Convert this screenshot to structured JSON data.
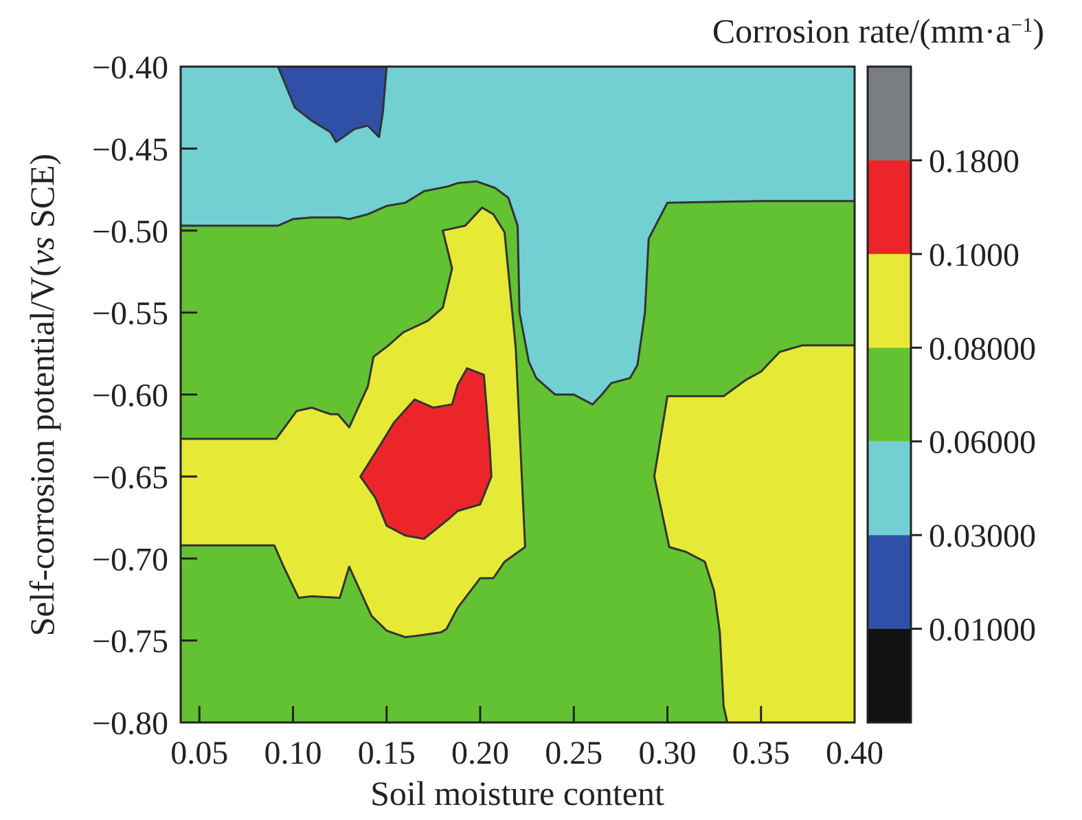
{
  "chart_data": {
    "type": "heatmap",
    "subtype": "filled-contour",
    "xlabel": "Soil moisture content",
    "ylabel_main": "Self-corrosion potential/V(",
    "ylabel_italic": "vs",
    "ylabel_end": " SCE)",
    "colorbar_title_main": "Corrosion rate/(mm·a",
    "colorbar_title_sup": "−1",
    "colorbar_title_end": ")",
    "xlim": [
      0.04,
      0.4
    ],
    "ylim": [
      -0.8,
      -0.4
    ],
    "x_ticks": [
      {
        "value": 0.05,
        "label": "0.05"
      },
      {
        "value": 0.1,
        "label": "0.10"
      },
      {
        "value": 0.15,
        "label": "0.15"
      },
      {
        "value": 0.2,
        "label": "0.20"
      },
      {
        "value": 0.25,
        "label": "0.25"
      },
      {
        "value": 0.3,
        "label": "0.30"
      },
      {
        "value": 0.35,
        "label": "0.35"
      },
      {
        "value": 0.4,
        "label": "0.40"
      }
    ],
    "y_ticks": [
      {
        "value": -0.4,
        "label": "−0.40"
      },
      {
        "value": -0.45,
        "label": "−0.45"
      },
      {
        "value": -0.5,
        "label": "−0.50"
      },
      {
        "value": -0.55,
        "label": "−0.55"
      },
      {
        "value": -0.6,
        "label": "−0.60"
      },
      {
        "value": -0.65,
        "label": "−0.65"
      },
      {
        "value": -0.7,
        "label": "−0.70"
      },
      {
        "value": -0.75,
        "label": "−0.75"
      },
      {
        "value": -0.8,
        "label": "−0.80"
      }
    ],
    "colorbar": {
      "bands": [
        {
          "name": "black",
          "color": "#111111"
        },
        {
          "name": "blue",
          "color": "#3050a8"
        },
        {
          "name": "cyan",
          "color": "#72d0d2"
        },
        {
          "name": "green",
          "color": "#62c232"
        },
        {
          "name": "yellow",
          "color": "#e6ea36"
        },
        {
          "name": "red",
          "color": "#ec252b"
        },
        {
          "name": "gray",
          "color": "#7a7d82"
        }
      ],
      "tick_labels": [
        "0.01000",
        "0.03000",
        "0.06000",
        "0.08000",
        "0.1000",
        "0.1800"
      ]
    },
    "regions": [
      {
        "name": "cyan-background",
        "color": "#72d0d2",
        "points": [
          [
            0.04,
            -0.4
          ],
          [
            0.4,
            -0.4
          ],
          [
            0.4,
            -0.8
          ],
          [
            0.04,
            -0.8
          ]
        ]
      },
      {
        "name": "blue-top",
        "color": "#3050a8",
        "points": [
          [
            0.092,
            -0.4
          ],
          [
            0.15,
            -0.4
          ],
          [
            0.148,
            -0.428
          ],
          [
            0.146,
            -0.443
          ],
          [
            0.14,
            -0.436
          ],
          [
            0.133,
            -0.438
          ],
          [
            0.123,
            -0.446
          ],
          [
            0.12,
            -0.44
          ],
          [
            0.11,
            -0.433
          ],
          [
            0.101,
            -0.425
          ]
        ]
      },
      {
        "name": "green-main",
        "color": "#62c232",
        "points": [
          [
            0.04,
            -0.497
          ],
          [
            0.092,
            -0.497
          ],
          [
            0.1,
            -0.493
          ],
          [
            0.11,
            -0.492
          ],
          [
            0.125,
            -0.492
          ],
          [
            0.13,
            -0.493
          ],
          [
            0.14,
            -0.49
          ],
          [
            0.15,
            -0.485
          ],
          [
            0.16,
            -0.483
          ],
          [
            0.17,
            -0.476
          ],
          [
            0.183,
            -0.473
          ],
          [
            0.188,
            -0.471
          ],
          [
            0.198,
            -0.47
          ],
          [
            0.208,
            -0.474
          ],
          [
            0.215,
            -0.48
          ],
          [
            0.22,
            -0.497
          ],
          [
            0.221,
            -0.55
          ],
          [
            0.226,
            -0.58
          ],
          [
            0.23,
            -0.59
          ],
          [
            0.24,
            -0.6
          ],
          [
            0.25,
            -0.6
          ],
          [
            0.26,
            -0.606
          ],
          [
            0.265,
            -0.6
          ],
          [
            0.27,
            -0.593
          ],
          [
            0.28,
            -0.59
          ],
          [
            0.284,
            -0.582
          ],
          [
            0.288,
            -0.55
          ],
          [
            0.29,
            -0.505
          ],
          [
            0.3,
            -0.483
          ],
          [
            0.35,
            -0.482
          ],
          [
            0.4,
            -0.482
          ],
          [
            0.4,
            -0.8
          ],
          [
            0.04,
            -0.8
          ]
        ]
      },
      {
        "name": "yellow-left",
        "color": "#e6ea36",
        "points": [
          [
            0.04,
            -0.627
          ],
          [
            0.07,
            -0.627
          ],
          [
            0.091,
            -0.627
          ],
          [
            0.102,
            -0.61
          ],
          [
            0.11,
            -0.608
          ],
          [
            0.115,
            -0.61
          ],
          [
            0.12,
            -0.612
          ],
          [
            0.124,
            -0.612
          ],
          [
            0.13,
            -0.62
          ],
          [
            0.14,
            -0.595
          ],
          [
            0.143,
            -0.577
          ],
          [
            0.151,
            -0.57
          ],
          [
            0.159,
            -0.562
          ],
          [
            0.172,
            -0.555
          ],
          [
            0.18,
            -0.547
          ],
          [
            0.185,
            -0.523
          ],
          [
            0.18,
            -0.5
          ],
          [
            0.192,
            -0.497
          ],
          [
            0.201,
            -0.486
          ],
          [
            0.207,
            -0.49
          ],
          [
            0.213,
            -0.501
          ],
          [
            0.219,
            -0.572
          ],
          [
            0.224,
            -0.693
          ],
          [
            0.213,
            -0.702
          ],
          [
            0.207,
            -0.712
          ],
          [
            0.2,
            -0.712
          ],
          [
            0.188,
            -0.73
          ],
          [
            0.182,
            -0.743
          ],
          [
            0.179,
            -0.745
          ],
          [
            0.167,
            -0.747
          ],
          [
            0.16,
            -0.748
          ],
          [
            0.15,
            -0.744
          ],
          [
            0.142,
            -0.735
          ],
          [
            0.13,
            -0.705
          ],
          [
            0.125,
            -0.724
          ],
          [
            0.11,
            -0.723
          ],
          [
            0.103,
            -0.724
          ],
          [
            0.095,
            -0.705
          ],
          [
            0.09,
            -0.692
          ],
          [
            0.07,
            -0.692
          ],
          [
            0.04,
            -0.692
          ]
        ]
      },
      {
        "name": "red-center",
        "color": "#ec252b",
        "points": [
          [
            0.147,
            -0.63
          ],
          [
            0.154,
            -0.617
          ],
          [
            0.165,
            -0.603
          ],
          [
            0.175,
            -0.608
          ],
          [
            0.185,
            -0.606
          ],
          [
            0.188,
            -0.594
          ],
          [
            0.193,
            -0.584
          ],
          [
            0.202,
            -0.588
          ],
          [
            0.205,
            -0.63
          ],
          [
            0.206,
            -0.65
          ],
          [
            0.2,
            -0.667
          ],
          [
            0.188,
            -0.671
          ],
          [
            0.183,
            -0.676
          ],
          [
            0.17,
            -0.688
          ],
          [
            0.16,
            -0.686
          ],
          [
            0.15,
            -0.68
          ],
          [
            0.144,
            -0.663
          ],
          [
            0.136,
            -0.65
          ]
        ]
      },
      {
        "name": "yellow-right",
        "color": "#e6ea36",
        "points": [
          [
            0.4,
            -0.57
          ],
          [
            0.372,
            -0.57
          ],
          [
            0.36,
            -0.574
          ],
          [
            0.35,
            -0.586
          ],
          [
            0.342,
            -0.591
          ],
          [
            0.33,
            -0.601
          ],
          [
            0.31,
            -0.601
          ],
          [
            0.3,
            -0.601
          ],
          [
            0.293,
            -0.65
          ],
          [
            0.301,
            -0.693
          ],
          [
            0.31,
            -0.696
          ],
          [
            0.32,
            -0.702
          ],
          [
            0.325,
            -0.72
          ],
          [
            0.328,
            -0.745
          ],
          [
            0.33,
            -0.79
          ],
          [
            0.332,
            -0.8
          ],
          [
            0.4,
            -0.8
          ]
        ]
      }
    ]
  }
}
